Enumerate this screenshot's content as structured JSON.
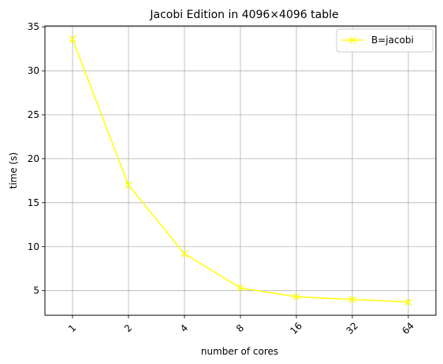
{
  "chart_data": {
    "type": "line",
    "title": "Jacobi Edition in 4096×4096 table",
    "xlabel": "number of cores",
    "ylabel": "time (s)",
    "categories": [
      "1",
      "2",
      "4",
      "8",
      "16",
      "32",
      "64"
    ],
    "series": [
      {
        "name": "B=jacobi",
        "values": [
          33.6,
          17.0,
          9.2,
          5.3,
          4.3,
          4.0,
          3.7
        ],
        "color": "#ffff00",
        "marker": "x"
      }
    ],
    "yticks": [
      5,
      10,
      15,
      20,
      25,
      30,
      35
    ],
    "ylim": [
      2.2,
      35.1
    ],
    "grid": true,
    "legend_position": "top-right",
    "xtick_rotation": -45
  }
}
